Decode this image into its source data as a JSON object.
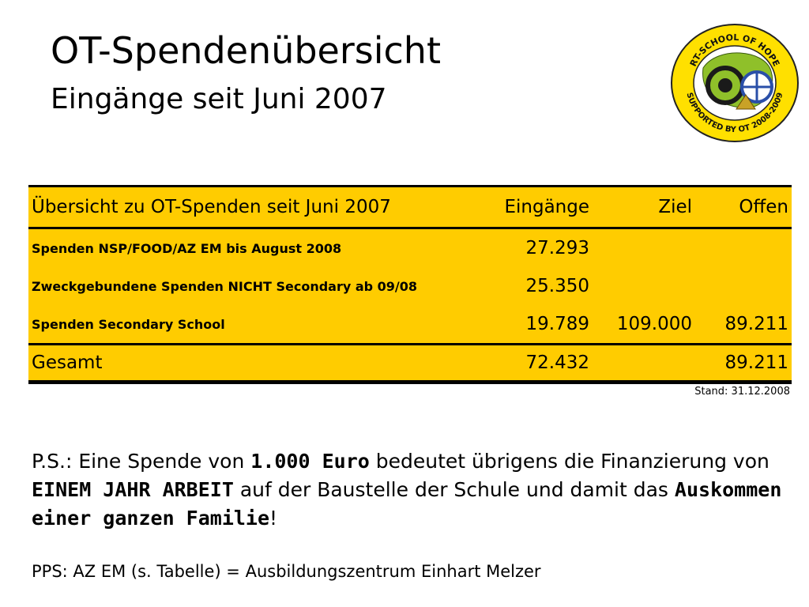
{
  "header": {
    "title": "OT-Spendenübersicht",
    "subtitle": "Eingänge seit Juni 2007"
  },
  "logo": {
    "top_text": "RT-SCHOOL OF HOPE",
    "bottom_text": "SUPPORTED BY OT 2008-2009",
    "colors": {
      "ring": "#ffe000",
      "map": "#8fc02a",
      "wheel": "#1a1a1a",
      "accent": "#2a4fa8"
    }
  },
  "table": {
    "headers": {
      "label": "Übersicht zu OT-Spenden seit Juni 2007",
      "eingaenge": "Eingänge",
      "ziel": "Ziel",
      "offen": "Offen"
    },
    "rows": [
      {
        "label": "Spenden NSP/FOOD/AZ EM bis August 2008",
        "eingaenge": "27.293",
        "ziel": "",
        "offen": ""
      },
      {
        "label": "Zweckgebundene Spenden NICHT Secondary ab 09/08",
        "eingaenge": "25.350",
        "ziel": "",
        "offen": ""
      },
      {
        "label": "Spenden Secondary School",
        "eingaenge": "19.789",
        "ziel": "109.000",
        "offen": "89.211"
      }
    ],
    "total": {
      "label": "Gesamt",
      "eingaenge": "72.432",
      "ziel": "",
      "offen": "89.211"
    },
    "background_color": "#ffcc00"
  },
  "stand": "Stand: 31.12.2008",
  "note": {
    "p1": "P.S.: Eine Spende von ",
    "b1": "1.000 Euro",
    "p2": " bedeutet übrigens die Finanzierung von ",
    "b2": "EINEM JAHR ARBEIT",
    "p3": " auf der Baustelle der Schule und damit das ",
    "b3": "Auskommen einer ganzen Familie",
    "p4": "!"
  },
  "note2": "PPS: AZ EM (s. Tabelle) = Ausbildungszentrum Einhart Melzer"
}
